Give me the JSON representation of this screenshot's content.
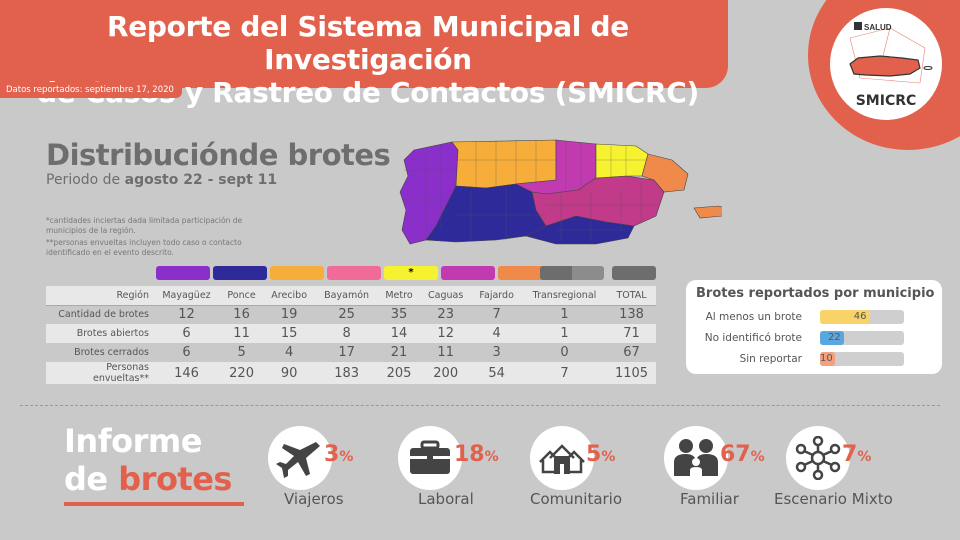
{
  "header": {
    "title_line1": "Reporte del Sistema Municipal de Investigación",
    "title_line2": "de Casos y Rastreo de Contactos (SMICRC)",
    "date_label": "Datos reportados: septiembre 17, 2020"
  },
  "logo": {
    "top_text": "SALUD",
    "name": "SMICRC"
  },
  "section": {
    "title": "Distribuciónde brotes",
    "subtitle_prefix": "Periodo de ",
    "subtitle_bold": "agosto 22 - sept 11",
    "note1": "*cantidades inciertas dada limitada participación de municipios de la región.",
    "note2": "**personas envueltas incluyen todo caso o contacto identificado en el evento descrito."
  },
  "colors": {
    "accent": "#e2614d",
    "mayaguez": "#8a2fc9",
    "ponce": "#2f2a9a",
    "arecibo": "#f7ad3a",
    "bayamon": "#f06a9a",
    "metro": "#f6f22f",
    "caguas": "#c23ab0",
    "fajardo": "#f08a4a",
    "transregional": "#6d6d6d",
    "total": "#6d6d6d"
  },
  "table": {
    "row_header": "Región",
    "regions": [
      "Mayagüez",
      "Ponce",
      "Arecibo",
      "Bayamón",
      "Metro",
      "Caguas",
      "Fajardo",
      "Transregional",
      "TOTAL"
    ],
    "metro_mark": "*",
    "rows": [
      {
        "label": "Cantidad de brotes",
        "values": [
          "12",
          "16",
          "19",
          "25",
          "35",
          "23",
          "7",
          "1",
          "138"
        ]
      },
      {
        "label": "Brotes abiertos",
        "values": [
          "6",
          "11",
          "15",
          "8",
          "14",
          "12",
          "4",
          "1",
          "71"
        ]
      },
      {
        "label": "Brotes cerrados",
        "values": [
          "6",
          "5",
          "4",
          "17",
          "21",
          "11",
          "3",
          "0",
          "67"
        ]
      },
      {
        "label": "Personas envueltas**",
        "values": [
          "146",
          "220",
          "90",
          "183",
          "205",
          "200",
          "54",
          "7",
          "1105"
        ]
      }
    ]
  },
  "municipios": {
    "title": "Brotes reportados por municipio",
    "rows": [
      {
        "label": "Al menos un brote",
        "value": 46,
        "display": "46",
        "color": "#f7d36a"
      },
      {
        "label": "No identificó brote",
        "value": 22,
        "display": "22",
        "color": "#5aa7e0"
      },
      {
        "label": "Sin reportar",
        "value": 10,
        "display": "10",
        "color": "#f3a07f"
      }
    ],
    "max": 78
  },
  "informe": {
    "word1": "Informe",
    "word2": "de",
    "word3": "brotes"
  },
  "categories": [
    {
      "icon": "airplane-icon",
      "pct": "3",
      "pct_sign": "%",
      "label": "Viajeros"
    },
    {
      "icon": "briefcase-icon",
      "pct": "18",
      "pct_sign": "%",
      "label": "Laboral"
    },
    {
      "icon": "houses-icon",
      "pct": "5",
      "pct_sign": "%",
      "label": "Comunitario"
    },
    {
      "icon": "family-icon",
      "pct": "67",
      "pct_sign": "%",
      "label": "Familiar"
    },
    {
      "icon": "network-icon",
      "pct": "7",
      "pct_sign": "%",
      "label": "Escenario Mixto"
    }
  ]
}
